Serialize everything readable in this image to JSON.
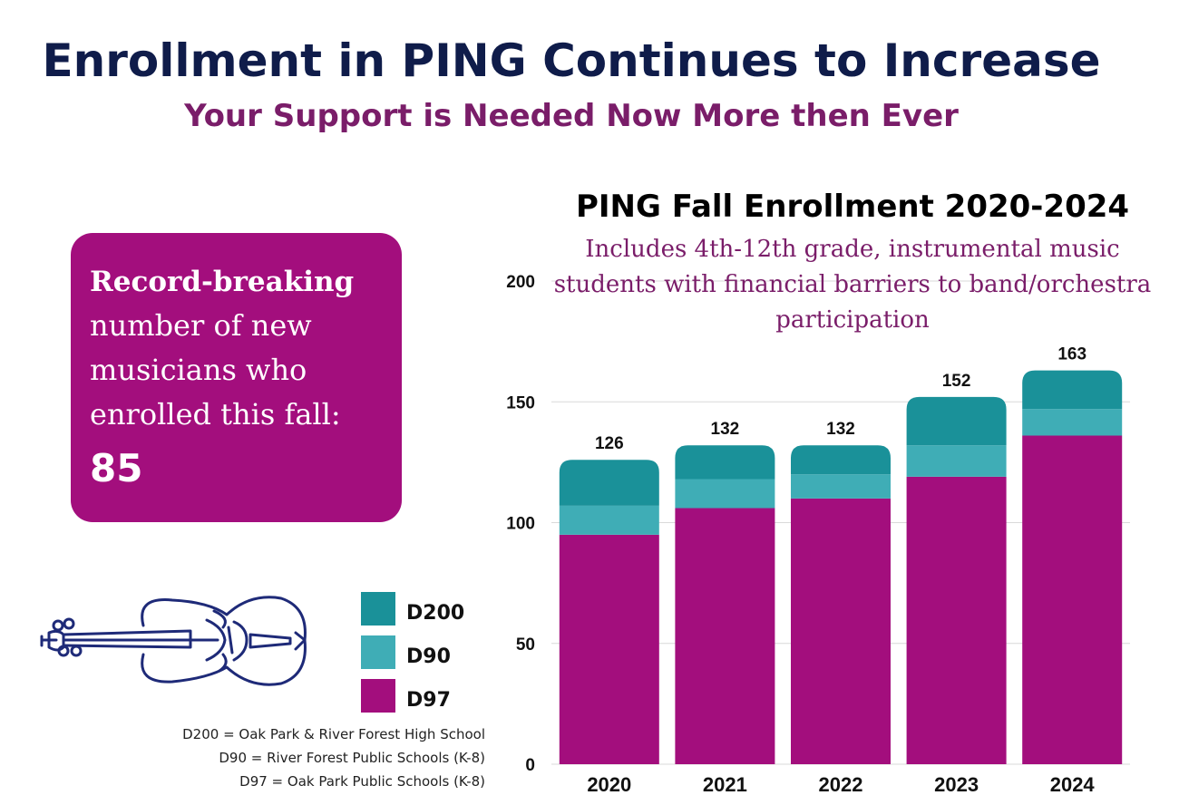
{
  "header": {
    "title": "Enrollment in PING Continues to Increase",
    "subtitle": "Your Support is Needed Now More then Ever"
  },
  "callout": {
    "bold": "Record-breaking",
    "text": "number of new musicians who enrolled this fall:",
    "number": "85"
  },
  "icons": [
    "violin-icon"
  ],
  "colors": {
    "D200": "#1a9199",
    "D90": "#3fadb6",
    "D97": "#a30e7d",
    "title": "#0f1c4a",
    "accent": "#7a1d69"
  },
  "legend": [
    {
      "label": "D200",
      "color": "#1a9199"
    },
    {
      "label": "D90",
      "color": "#3fadb6"
    },
    {
      "label": "D97",
      "color": "#a30e7d"
    }
  ],
  "notes": [
    "D200 = Oak Park & River Forest High School",
    "D90 = River Forest Public Schools (K-8)",
    "D97 = Oak Park Public Schools (K-8)"
  ],
  "chart_data": {
    "type": "bar",
    "stacked": true,
    "title": "PING Fall Enrollment 2020-2024",
    "subtitle": "Includes 4th-12th grade, instrumental music students with financial barriers to band/orchestra participation",
    "categories": [
      "2020",
      "2021",
      "2022",
      "2023",
      "2024"
    ],
    "series": [
      {
        "name": "D97",
        "values": [
          95,
          106,
          110,
          119,
          136
        ],
        "color": "#a30e7d"
      },
      {
        "name": "D90",
        "values": [
          12,
          12,
          10,
          13,
          11
        ],
        "color": "#3fadb6"
      },
      {
        "name": "D200",
        "values": [
          19,
          14,
          12,
          20,
          16
        ],
        "color": "#1a9199"
      }
    ],
    "totals": [
      126,
      132,
      132,
      152,
      163
    ],
    "yticks": [
      0,
      50,
      100,
      150,
      200
    ],
    "ylim": [
      0,
      200
    ],
    "grid": true,
    "legend": "left"
  }
}
